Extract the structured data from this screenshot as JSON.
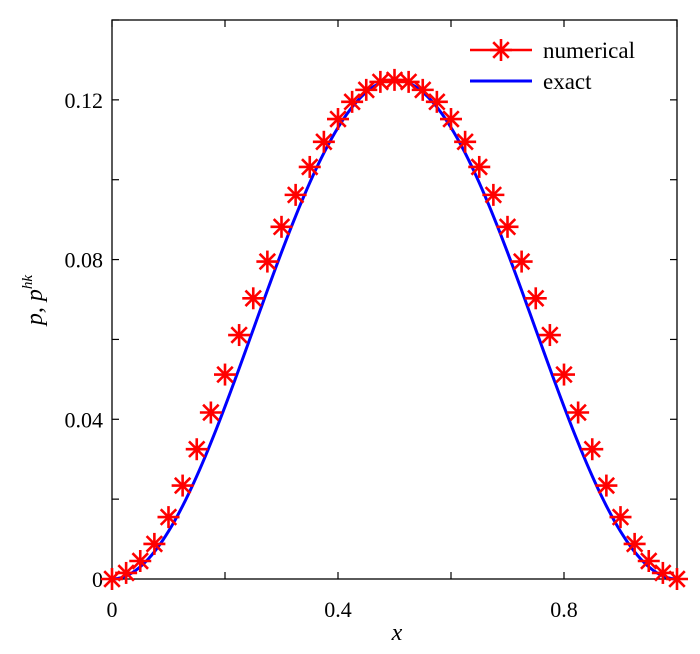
{
  "chart_data": {
    "type": "line",
    "title": "",
    "xlabel": "x",
    "ylabel": {
      "base": "p, p",
      "sup": "hk"
    },
    "xlim": [
      0,
      1
    ],
    "ylim": [
      0,
      0.14
    ],
    "xticks": [
      0,
      0.2,
      0.4,
      0.6,
      0.8,
      1.0
    ],
    "xtick_labels": [
      "0",
      "",
      "0.4",
      "",
      "0.8",
      ""
    ],
    "yticks": [
      0,
      0.02,
      0.04,
      0.06,
      0.08,
      0.1,
      0.12,
      0.14
    ],
    "ytick_labels": [
      "0",
      "",
      "0.04",
      "",
      "0.08",
      "",
      "0.12",
      ""
    ],
    "grid": false,
    "legend": {
      "position": "top-right",
      "entries": [
        "numerical",
        "exact"
      ]
    },
    "colors": {
      "numerical": "#ff0000",
      "exact": "#0000ff"
    },
    "series": [
      {
        "name": "numerical",
        "marker": "asterisk",
        "x": [
          0,
          0.025,
          0.05,
          0.075,
          0.1,
          0.125,
          0.15,
          0.175,
          0.2,
          0.225,
          0.25,
          0.275,
          0.3,
          0.325,
          0.35,
          0.375,
          0.4,
          0.425,
          0.45,
          0.475,
          0.5,
          0.525,
          0.55,
          0.575,
          0.6,
          0.625,
          0.65,
          0.675,
          0.7,
          0.725,
          0.75,
          0.775,
          0.8,
          0.825,
          0.85,
          0.875,
          0.9,
          0.925,
          0.95,
          0.975,
          1.0
        ],
        "y": [
          0,
          0.00152,
          0.00451,
          0.00879,
          0.0155,
          0.0234,
          0.0325,
          0.0417,
          0.0512,
          0.0611,
          0.0703,
          0.0795,
          0.0882,
          0.0962,
          0.1032,
          0.1095,
          0.1152,
          0.1195,
          0.1225,
          0.1245,
          0.125,
          0.1245,
          0.1225,
          0.1195,
          0.1152,
          0.1095,
          0.1032,
          0.0962,
          0.0882,
          0.0795,
          0.0703,
          0.0611,
          0.0512,
          0.0417,
          0.0325,
          0.0234,
          0.0155,
          0.00879,
          0.00451,
          0.00152,
          0
        ]
      },
      {
        "name": "exact",
        "x": [
          0,
          0.05,
          0.1,
          0.15,
          0.2,
          0.25,
          0.3,
          0.35,
          0.4,
          0.45,
          0.5,
          0.55,
          0.6,
          0.65,
          0.7,
          0.75,
          0.8,
          0.85,
          0.9,
          0.95,
          1.0
        ],
        "y": [
          0,
          0.0045,
          0.0155,
          0.0325,
          0.0512,
          0.0703,
          0.0882,
          0.1032,
          0.1152,
          0.1225,
          0.125,
          0.1225,
          0.1152,
          0.1032,
          0.0882,
          0.0703,
          0.0512,
          0.0325,
          0.0155,
          0.0045,
          0
        ]
      }
    ]
  }
}
